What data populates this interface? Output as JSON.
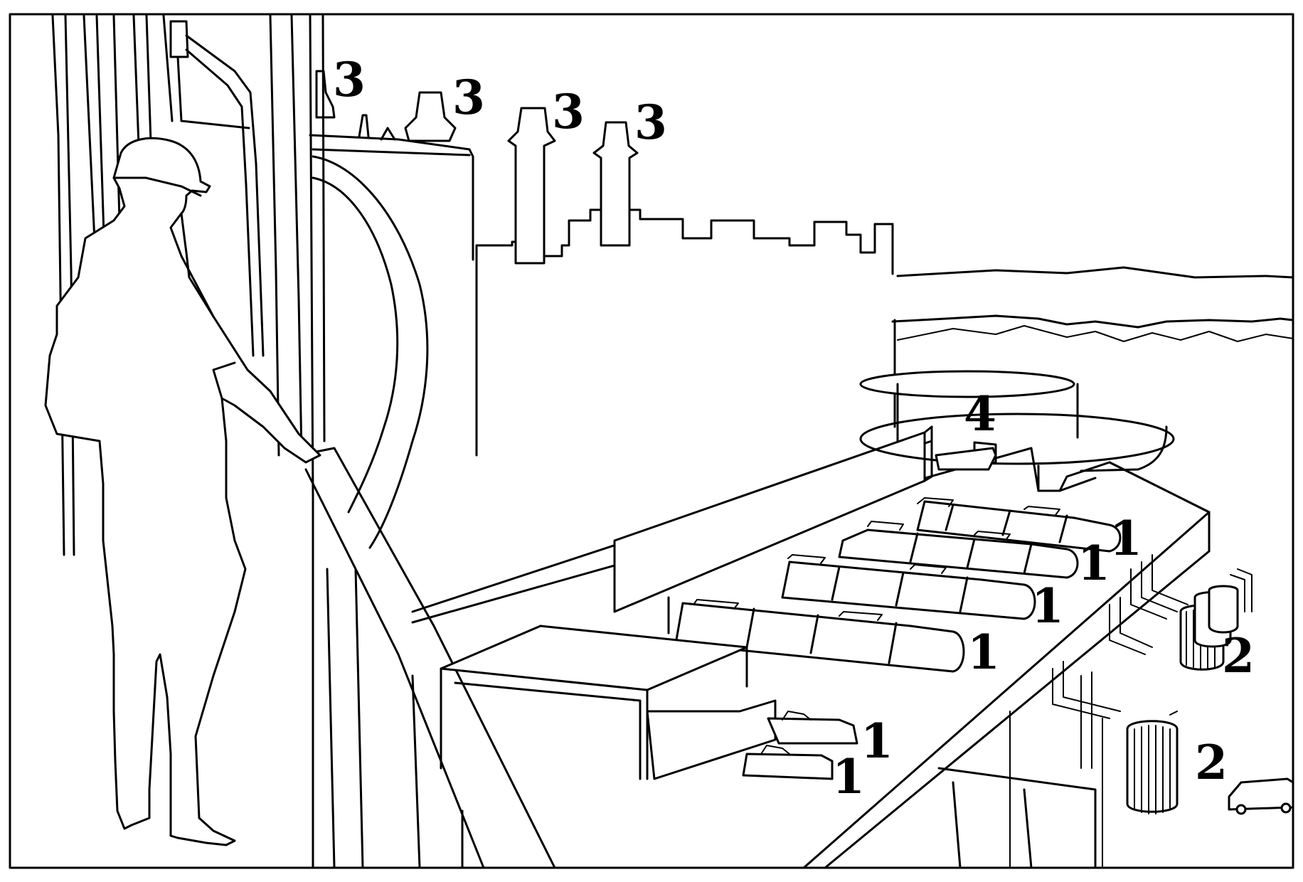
{
  "diagram": {
    "labels": {
      "chimney_1": "3",
      "chimney_2": "3",
      "chimney_3": "3",
      "chimney_4": "3",
      "tank_marker": "4",
      "unit_a": "1",
      "unit_b": "1",
      "unit_c": "1",
      "unit_d": "1",
      "unit_e": "1",
      "unit_f": "1",
      "transformer_group": "2",
      "transformer_single": "2"
    }
  }
}
